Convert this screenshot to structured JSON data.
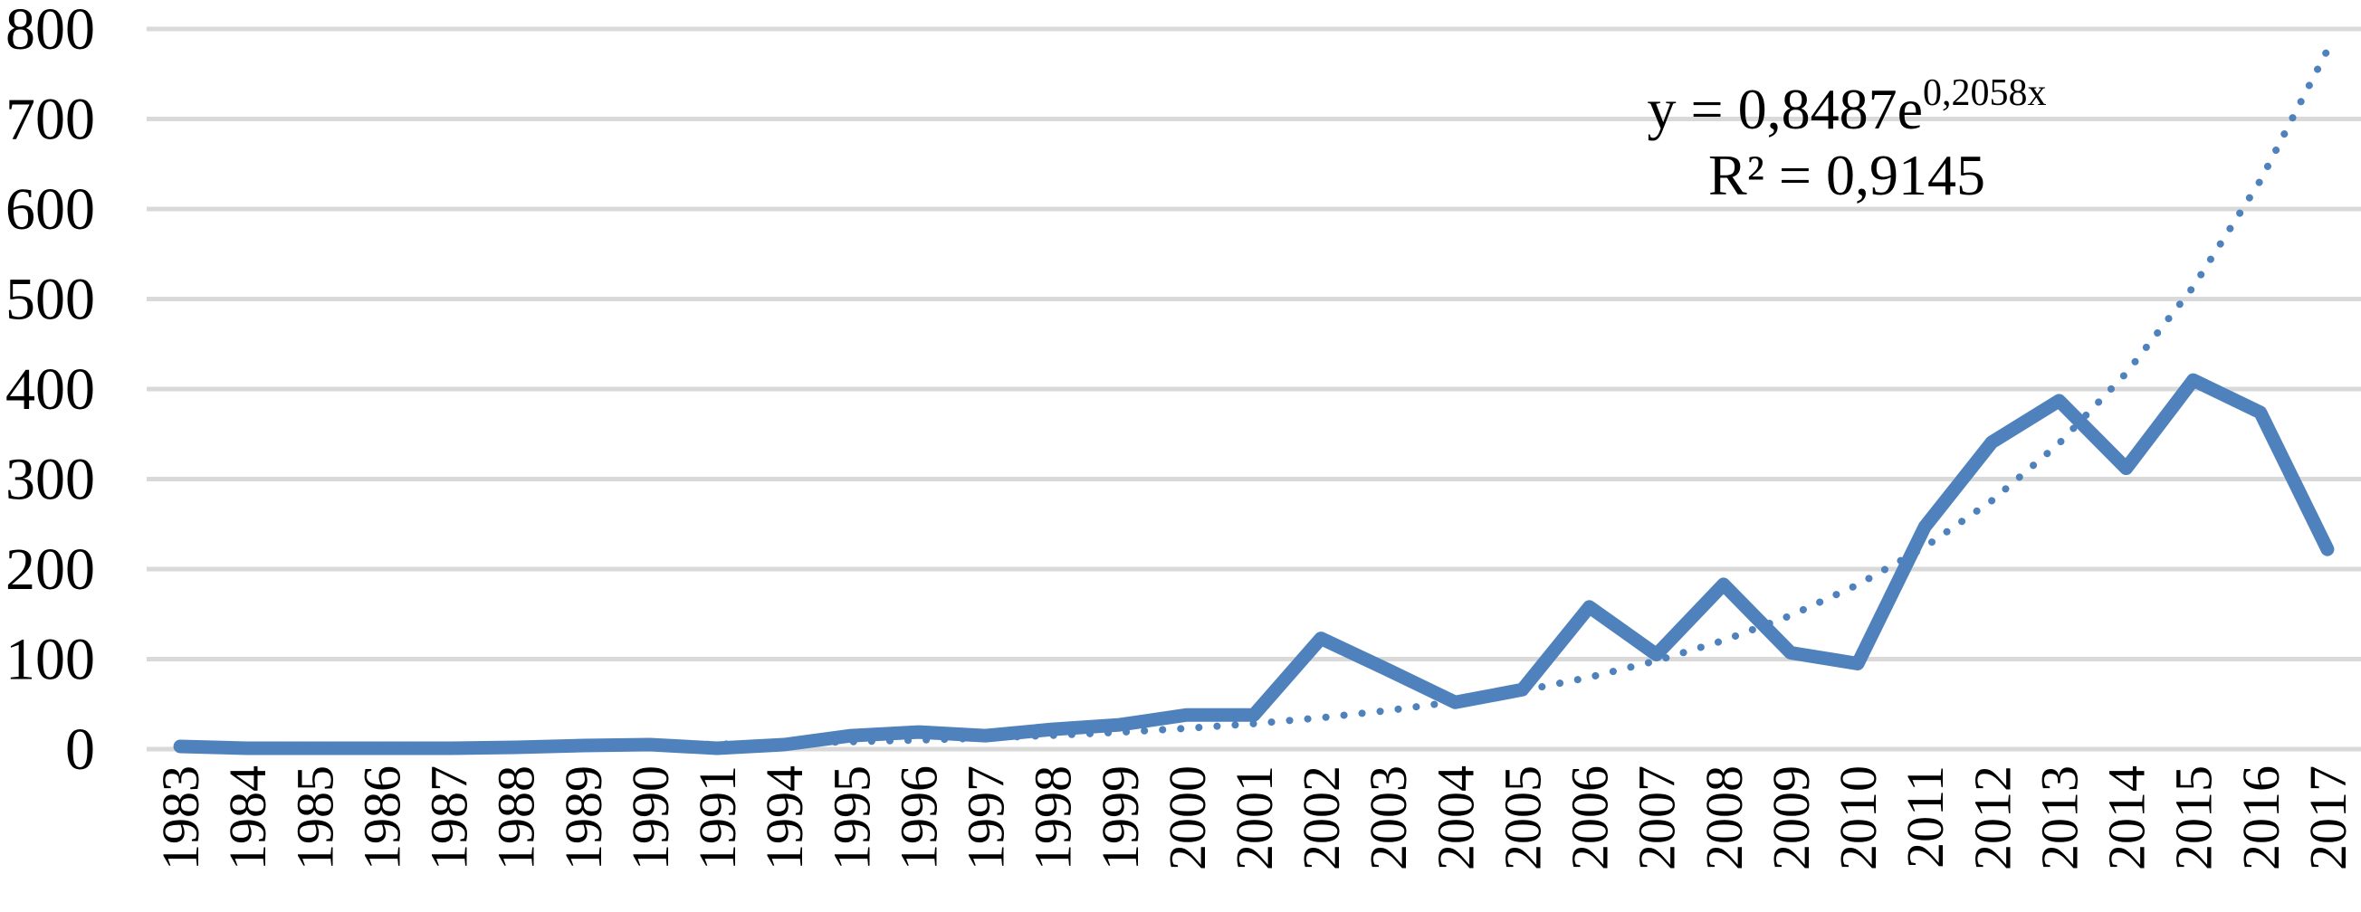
{
  "chart_data": {
    "type": "line",
    "title": "",
    "xlabel": "",
    "ylabel": "",
    "ylim": [
      0,
      800
    ],
    "yticks": [
      "0",
      "100",
      "200",
      "300",
      "400",
      "500",
      "600",
      "700",
      "800"
    ],
    "grid": true,
    "categories": [
      "1983",
      "1984",
      "1985",
      "1986",
      "1987",
      "1988",
      "1989",
      "1990",
      "1991",
      "1994",
      "1995",
      "1996",
      "1997",
      "1998",
      "1999",
      "2000",
      "2001",
      "2002",
      "2003",
      "2004",
      "2005",
      "2006",
      "2007",
      "2008",
      "2009",
      "2010",
      "2011",
      "2012",
      "2013",
      "2014",
      "2015",
      "2016",
      "2017"
    ],
    "series": [
      {
        "values": [
          3,
          1,
          1,
          1,
          1,
          2,
          4,
          5,
          1,
          5,
          15,
          19,
          15,
          22,
          27,
          38,
          38,
          123,
          88,
          52,
          66,
          158,
          105,
          183,
          107,
          95,
          247,
          341,
          387,
          312,
          410,
          374,
          222
        ],
        "color": "#4f81bd",
        "style": "solid"
      },
      {
        "values": [
          1.04,
          1.28,
          1.57,
          1.93,
          2.38,
          2.92,
          3.59,
          4.41,
          5.43,
          6.68,
          8.21,
          10.09,
          12.41,
          15.27,
          18.77,
          23.09,
          28.39,
          34.91,
          42.94,
          52.8,
          64.93,
          79.84,
          98.18,
          120.74,
          148.48,
          182.59,
          224.54,
          276.12,
          339.55,
          417.56,
          513.49,
          631.46,
          776.52
        ],
        "color": "#4f81bd",
        "style": "dotted"
      }
    ],
    "trendline": {
      "equation_main": "y = 0,8487e",
      "equation_exp": "0,2058x",
      "r_squared": "R² = 0,9145"
    }
  }
}
